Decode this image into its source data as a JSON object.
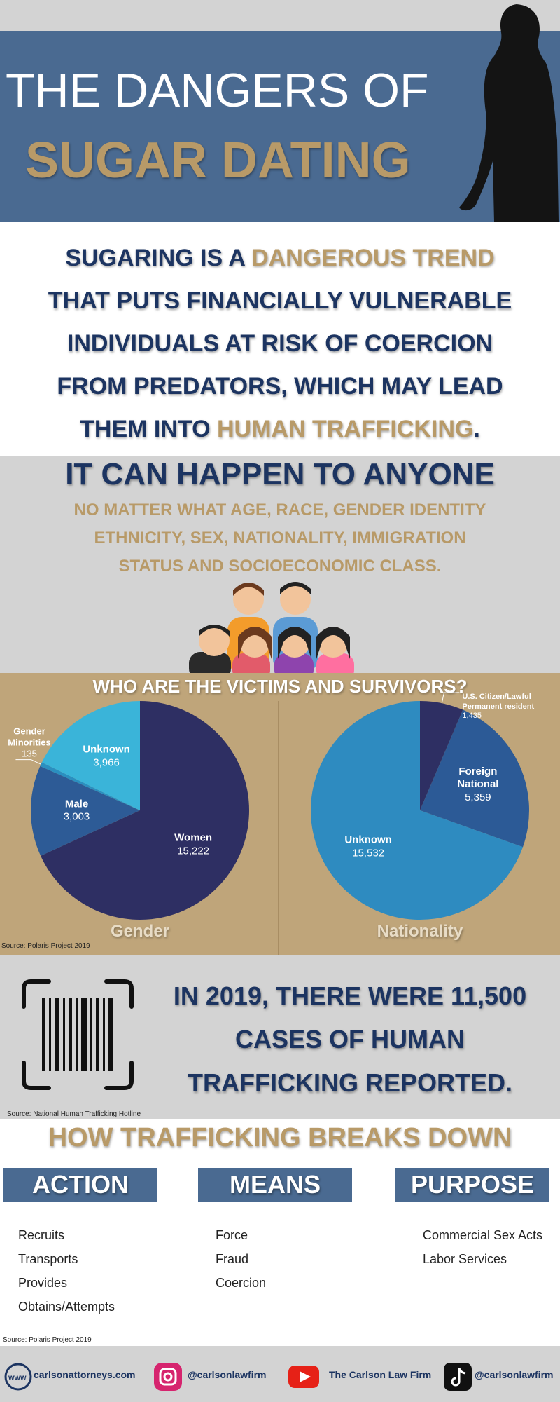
{
  "header": {
    "title_line1": "THE DANGERS OF",
    "title_line2": "SUGAR DATING"
  },
  "intro": {
    "lines": [
      [
        "SUGARING IS A",
        "DANGEROUS TREND"
      ],
      [
        "THAT PUTS FINANCIALLY VULNERABLE"
      ],
      [
        "INDIVIDUALS AT RISK OF COERCION"
      ],
      [
        "FROM PREDATORS, WHICH MAY LEAD"
      ],
      [
        "THEM INTO",
        "HUMAN TRAFFICKING",
        "."
      ]
    ]
  },
  "anyone": {
    "title": "IT CAN HAPPEN TO ANYONE",
    "lines": [
      "NO MATTER WHAT AGE, RACE, GENDER IDENTITY",
      "ETHNICITY, SEX, NATIONALITY, IMMIGRATION",
      "STATUS AND SOCIOECONOMIC CLASS."
    ]
  },
  "victims": {
    "title": "WHO ARE THE VICTIMS AND SURVIVORS?",
    "source": "Source: Polaris Project 2019"
  },
  "chart_data": [
    {
      "type": "pie",
      "title": "Gender",
      "categories": [
        "Women",
        "Male",
        "Gender Minorities",
        "Unknown"
      ],
      "values": [
        15222,
        3003,
        135,
        3966
      ],
      "value_labels": [
        "15,222",
        "3,003",
        "135",
        "3,966"
      ],
      "colors": [
        "#2e2f63",
        "#2d5b96",
        "#2a8fc0",
        "#3ab4d9"
      ]
    },
    {
      "type": "pie",
      "title": "Nationality",
      "categories": [
        "U.S. Citizen/Lawful Permanent resident",
        "Foreign National",
        "Unknown"
      ],
      "values": [
        1435,
        5359,
        15532
      ],
      "value_labels": [
        "1,435",
        "5,359",
        "15,532"
      ],
      "colors": [
        "#2e2f63",
        "#2c5a96",
        "#2e8bc0"
      ]
    }
  ],
  "stat": {
    "lines": [
      "IN 2019, THERE WERE 11,500",
      "CASES OF HUMAN",
      "TRAFFICKING REPORTED."
    ],
    "source": "Source: National Human Trafficking Hotline"
  },
  "breakdown": {
    "title": "HOW TRAFFICKING BREAKS DOWN",
    "columns": [
      {
        "heading": "ACTION",
        "items": [
          "Recruits",
          "Transports",
          "Provides",
          "Obtains/Attempts"
        ]
      },
      {
        "heading": "MEANS",
        "items": [
          "Force",
          "Fraud",
          "Coercion"
        ]
      },
      {
        "heading": "PURPOSE",
        "items": [
          "Commercial Sex Acts",
          "Labor Services"
        ]
      }
    ],
    "source": "Source: Polaris Project 2019"
  },
  "footer": {
    "website_icon": "WWW",
    "website": "carlsonattorneys.com",
    "instagram": "@carlsonlawfirm",
    "youtube": "The Carlson Law Firm",
    "tiktok": "@carlsonlawfirm"
  }
}
